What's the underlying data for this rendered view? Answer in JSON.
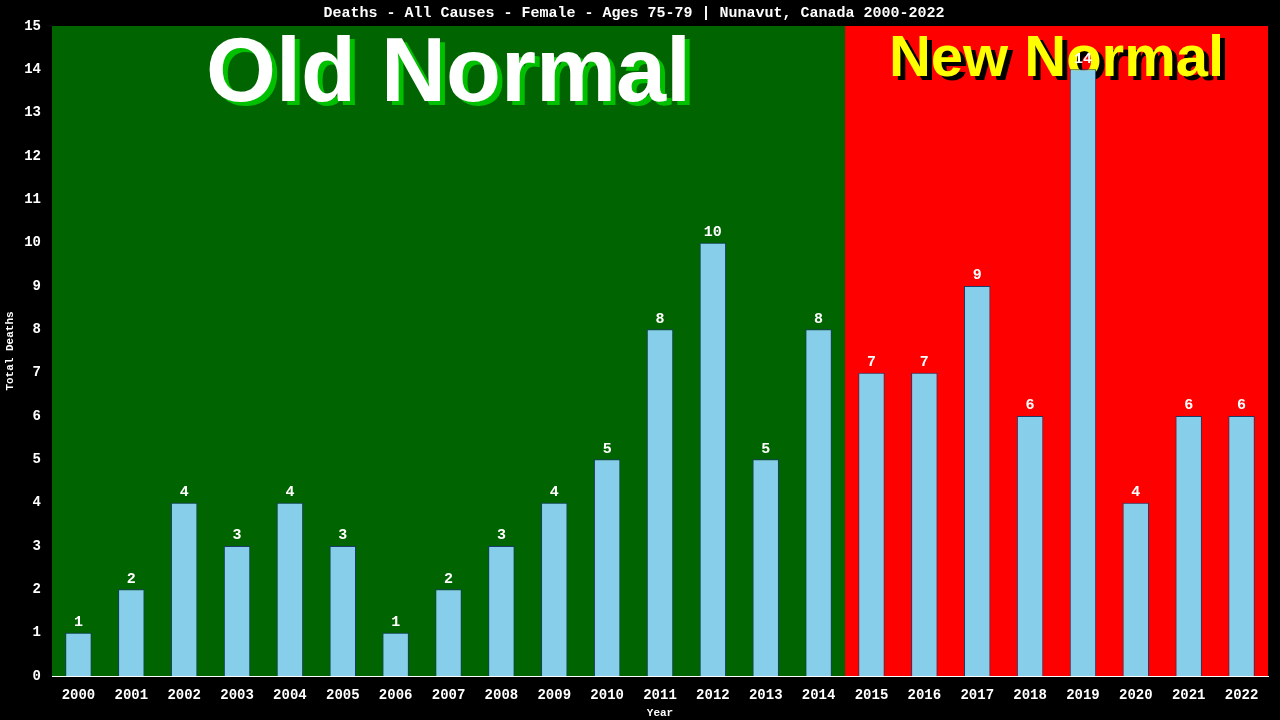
{
  "chart_data": {
    "type": "bar",
    "title": "Deaths - All Causes - Female - Ages 75-79 | Nunavut, Canada 2000-2022",
    "xlabel": "Year",
    "ylabel": "Total Deaths",
    "categories": [
      "2000",
      "2001",
      "2002",
      "2003",
      "2004",
      "2005",
      "2006",
      "2007",
      "2008",
      "2009",
      "2010",
      "2011",
      "2012",
      "2013",
      "2014",
      "2015",
      "2016",
      "2017",
      "2018",
      "2019",
      "2020",
      "2021",
      "2022"
    ],
    "values": [
      1,
      2,
      4,
      3,
      4,
      3,
      1,
      2,
      3,
      4,
      5,
      8,
      10,
      5,
      8,
      7,
      7,
      9,
      6,
      14,
      4,
      6,
      6
    ],
    "color": "#87ceeb",
    "ylim": [
      0,
      15
    ],
    "yticks": [
      0,
      1,
      2,
      3,
      4,
      5,
      6,
      7,
      8,
      9,
      10,
      11,
      12,
      13,
      14,
      15
    ],
    "grid": false,
    "legend": false,
    "data_labels": true,
    "bands": [
      {
        "axis": "x",
        "from": "2000",
        "to": "2014",
        "label": "Old Normal",
        "color": "#006400"
      },
      {
        "axis": "x",
        "from": "2015",
        "to": "2022",
        "label": "New Normal",
        "color": "#ff0000"
      }
    ]
  }
}
